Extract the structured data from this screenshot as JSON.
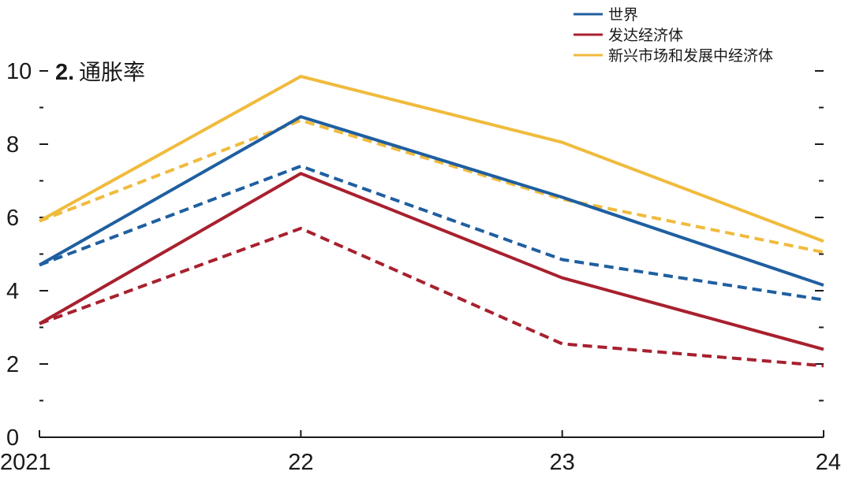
{
  "chart_data": {
    "type": "line",
    "title_number": "2.",
    "title": "通胀率",
    "x": [
      "2021",
      "22",
      "23",
      "24"
    ],
    "ylim": [
      0,
      10
    ],
    "y_ticks": [
      "0",
      "2",
      "4",
      "6",
      "8",
      "10"
    ],
    "grid": false,
    "legend_position": "top-right",
    "series": [
      {
        "name": "世界",
        "color": "#1f5fa0",
        "style": "solid",
        "values": [
          4.7,
          8.75,
          6.55,
          4.15
        ]
      },
      {
        "name": "世界",
        "color": "#1f5fa0",
        "style": "dashed",
        "values": [
          4.7,
          7.4,
          4.85,
          3.75
        ],
        "legend": false
      },
      {
        "name": "发达经济体",
        "color": "#a8202f",
        "style": "solid",
        "values": [
          3.1,
          7.2,
          4.35,
          2.4
        ]
      },
      {
        "name": "发达经济体",
        "color": "#a8202f",
        "style": "dashed",
        "values": [
          3.1,
          5.7,
          2.55,
          1.95
        ],
        "legend": false
      },
      {
        "name": "新兴市场和发展中经济体",
        "color": "#f0bb3d",
        "style": "solid",
        "values": [
          5.9,
          9.85,
          8.05,
          5.35
        ]
      },
      {
        "name": "新兴市场和发展中经济体",
        "color": "#f0bb3d",
        "style": "dashed",
        "values": [
          5.9,
          8.65,
          6.5,
          5.05
        ],
        "legend": false
      }
    ]
  }
}
